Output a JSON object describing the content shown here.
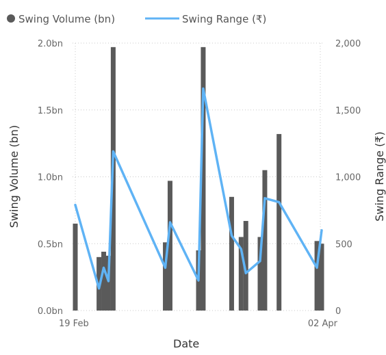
{
  "legend": {
    "volume_label": "Swing Volume (bn)",
    "range_label": "Swing Range (₹)"
  },
  "colors": {
    "bar": "#5a5a5a",
    "line": "#5fb3f5",
    "grid": "#c8c8c8"
  },
  "axes": {
    "x_title": "Date",
    "y_left_title": "Swing Volume (bn)",
    "y_right_title": "Swing Range (₹)",
    "x_ticks": [
      {
        "label": "19 Feb",
        "day": 0
      },
      {
        "label": "02 Apr",
        "day": 42
      }
    ],
    "y_left_ticks": [
      "0.0bn",
      "0.5bn",
      "1.0bn",
      "1.5bn",
      "2.0bn"
    ],
    "y_right_ticks": [
      "0",
      "500",
      "1,000",
      "1,500",
      "2,000"
    ]
  },
  "chart_data": {
    "type": "bar+line",
    "x_label": "Date",
    "x_domain_days_from_19_Feb": [
      0,
      43
    ],
    "series": [
      {
        "name": "Swing Volume (bn)",
        "type": "bar",
        "axis": "left",
        "ylim": [
          0,
          2.0
        ],
        "points": [
          {
            "day": 0,
            "value": 0.65
          },
          {
            "day": 5,
            "value": 0.4
          },
          {
            "day": 6,
            "value": 0.44
          },
          {
            "day": 7,
            "value": 0.41
          },
          {
            "day": 8,
            "value": 1.97
          },
          {
            "day": 19,
            "value": 0.51
          },
          {
            "day": 20,
            "value": 0.97
          },
          {
            "day": 26,
            "value": 0.45
          },
          {
            "day": 27,
            "value": 1.97
          },
          {
            "day": 33,
            "value": 0.85
          },
          {
            "day": 35,
            "value": 0.55
          },
          {
            "day": 36,
            "value": 0.67
          },
          {
            "day": 39,
            "value": 0.55
          },
          {
            "day": 40,
            "value": 1.05
          },
          {
            "day": 43,
            "value": 1.32
          },
          {
            "day": 51,
            "value": 0.52
          },
          {
            "day": 52,
            "value": 0.5
          }
        ]
      },
      {
        "name": "Swing Range (₹)",
        "type": "line",
        "axis": "right",
        "ylim": [
          0,
          2000
        ],
        "points": [
          {
            "day": 0,
            "value": 790
          },
          {
            "day": 5,
            "value": 165
          },
          {
            "day": 6,
            "value": 320
          },
          {
            "day": 7,
            "value": 220
          },
          {
            "day": 8,
            "value": 1190
          },
          {
            "day": 19,
            "value": 320
          },
          {
            "day": 20,
            "value": 660
          },
          {
            "day": 26,
            "value": 225
          },
          {
            "day": 27,
            "value": 1660
          },
          {
            "day": 33,
            "value": 560
          },
          {
            "day": 35,
            "value": 460
          },
          {
            "day": 36,
            "value": 280
          },
          {
            "day": 39,
            "value": 370
          },
          {
            "day": 40,
            "value": 840
          },
          {
            "day": 43,
            "value": 810
          },
          {
            "day": 51,
            "value": 320
          },
          {
            "day": 52,
            "value": 600
          }
        ]
      }
    ]
  }
}
